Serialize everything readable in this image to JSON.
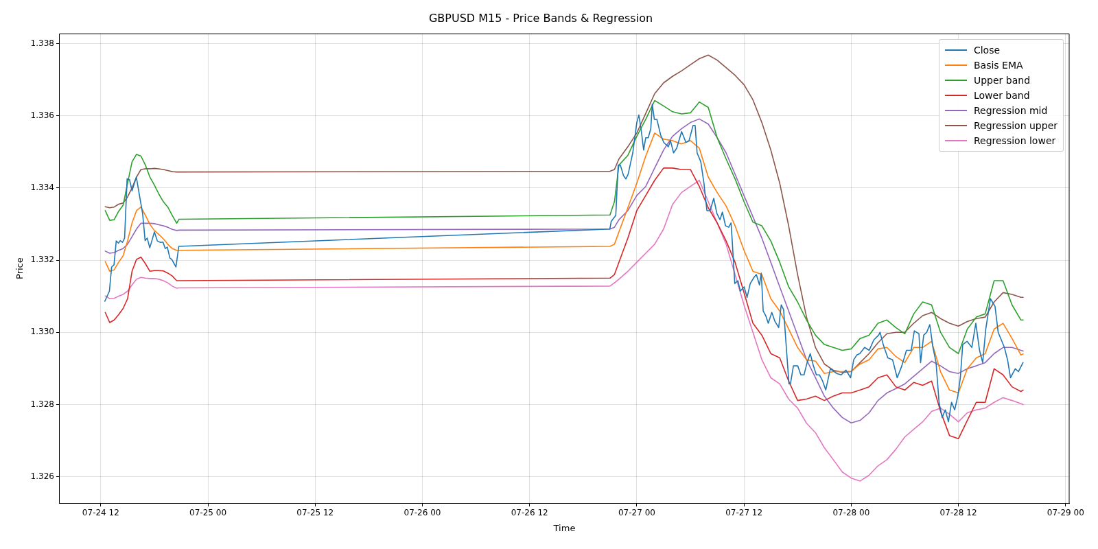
{
  "chart_data": {
    "type": "line",
    "title": "GBPUSD M15 - Price Bands & Regression",
    "xlabel": "Time",
    "ylabel": "Price",
    "x": [
      "--07-24T12:30",
      "--07-24T13:00",
      "--07-24T13:30",
      "--07-24T14:00",
      "--07-24T14:30",
      "--07-24T15:00",
      "--07-24T15:30",
      "--07-24T16:00",
      "--07-24T16:30",
      "--07-24T17:00",
      "--07-24T17:30",
      "--07-24T18:00",
      "--07-24T18:30",
      "--07-24T19:00",
      "--07-24T19:30",
      "--07-24T20:00",
      "--07-24T20:30",
      "--07-24T20:45",
      "--07-26T21:00",
      "--07-26T21:30",
      "--07-26T22:00",
      "--07-26T23:00",
      "--07-27T00:00",
      "--07-27T01:00",
      "--07-27T02:00",
      "--07-27T03:00",
      "--07-27T04:00",
      "--07-27T05:00",
      "--07-27T06:00",
      "--07-27T07:00",
      "--07-27T08:00",
      "--07-27T09:00",
      "--07-27T10:00",
      "--07-27T11:00",
      "--07-27T12:00",
      "--07-27T13:00",
      "--07-27T14:00",
      "--07-27T15:00",
      "--07-27T16:00",
      "--07-27T17:00",
      "--07-27T18:00",
      "--07-27T19:00",
      "--07-27T20:00",
      "--07-27T21:00",
      "--07-27T22:00",
      "--07-27T23:00",
      "--07-28T00:00",
      "--07-28T01:00",
      "--07-28T02:00",
      "--07-28T03:00",
      "--07-28T04:00",
      "--07-28T05:00",
      "--07-28T06:00",
      "--07-28T07:00",
      "--07-28T08:00",
      "--07-28T09:00",
      "--07-28T10:00",
      "--07-28T11:00",
      "--07-28T12:00",
      "--07-28T13:00",
      "--07-28T14:00",
      "--07-28T15:00",
      "--07-28T16:00",
      "--07-28T17:00",
      "--07-28T18:00",
      "--07-28T19:00",
      "--07-28T19:15"
    ],
    "xlim": [
      "--07-24T07:24",
      "--07-29T00:24"
    ],
    "xticks": [
      {
        "value": "--07-24T12:00",
        "label": "07-24 12"
      },
      {
        "value": "--07-25T00:00",
        "label": "07-25 00"
      },
      {
        "value": "--07-25T12:00",
        "label": "07-25 12"
      },
      {
        "value": "--07-26T00:00",
        "label": "07-26 00"
      },
      {
        "value": "--07-26T12:00",
        "label": "07-26 12"
      },
      {
        "value": "--07-27T00:00",
        "label": "07-27 00"
      },
      {
        "value": "--07-27T12:00",
        "label": "07-27 12"
      },
      {
        "value": "--07-28T00:00",
        "label": "07-28 00"
      },
      {
        "value": "--07-28T12:00",
        "label": "07-28 12"
      },
      {
        "value": "--07-29T00:00",
        "label": "07-29 00"
      }
    ],
    "ylim": [
      1.32527,
      1.33827
    ],
    "yticks": [
      1.326,
      1.328,
      {
        "value": 1.33,
        "label": "1.330"
      },
      1.332,
      1.334,
      1.336,
      1.338
    ],
    "grid": true,
    "legend": "top right",
    "series": [
      {
        "name": "Close",
        "color": "#1f77b4",
        "x": [
          "--07-24T12:27",
          "--07-24T12:58",
          "--07-24T13:13",
          "--07-24T13:29",
          "--07-24T13:44",
          "--07-24T13:59",
          "--07-24T14:11",
          "--07-24T14:26",
          "--07-24T14:40",
          "--07-24T14:57",
          "--07-24T15:13",
          "--07-24T15:30",
          "--07-24T15:59",
          "--07-24T16:20",
          "--07-24T16:41",
          "--07-24T16:58",
          "--07-24T17:12",
          "--07-24T17:29",
          "--07-24T17:43",
          "--07-24T18:00",
          "--07-24T18:20",
          "--07-24T18:41",
          "--07-24T18:58",
          "--07-24T19:13",
          "--07-24T19:27",
          "--07-24T19:44",
          "--07-24T19:58",
          "--07-24T20:25",
          "--07-24T20:44",
          "--07-26T20:59",
          "--07-26T21:08",
          "--07-26T21:39",
          "--07-26T21:55",
          "--07-26T22:10",
          "--07-26T22:31",
          "--07-26T22:47",
          "--07-26T23:02",
          "--07-26T23:33",
          "--07-27T00:00",
          "--07-27T00:14",
          "--07-27T00:31",
          "--07-27T00:46",
          "--07-27T01:00",
          "--07-27T01:17",
          "--07-27T01:34",
          "--07-27T01:44",
          "--07-27T01:58",
          "--07-27T02:15",
          "--07-27T02:40",
          "--07-27T03:01",
          "--07-27T03:32",
          "--07-27T03:46",
          "--07-27T04:07",
          "--07-27T04:28",
          "--07-27T05:01",
          "--07-27T05:30",
          "--07-27T05:51",
          "--07-27T06:18",
          "--07-27T06:32",
          "--07-27T06:45",
          "--07-27T07:10",
          "--07-27T07:31",
          "--07-27T07:51",
          "--07-27T08:12",
          "--07-27T08:37",
          "--07-27T08:58",
          "--07-27T09:19",
          "--07-27T09:35",
          "--07-27T09:56",
          "--07-27T10:17",
          "--07-27T10:33",
          "--07-27T10:41",
          "--07-27T10:58",
          "--07-27T11:19",
          "--07-27T11:35",
          "--07-27T12:01",
          "--07-27T12:21",
          "--07-27T12:42",
          "--07-27T13:07",
          "--07-27T13:23",
          "--07-27T13:44",
          "--07-27T13:56",
          "--07-27T14:09",
          "--07-27T14:26",
          "--07-27T14:43",
          "--07-27T15:07",
          "--07-27T15:28",
          "--07-27T15:53",
          "--07-27T16:10",
          "--07-27T16:26",
          "--07-27T17:02",
          "--07-27T17:12",
          "--07-27T17:32",
          "--07-27T17:40",
          "--07-27T18:01",
          "--07-27T18:22",
          "--07-27T18:43",
          "--07-27T19:04",
          "--07-27T19:25",
          "--07-27T19:46",
          "--07-27T20:06",
          "--07-27T20:27",
          "--07-27T20:48",
          "--07-27T21:09",
          "--07-27T21:40",
          "--07-27T22:22",
          "--07-27T22:53",
          "--07-27T23:25",
          "--07-27T23:56",
          "--07-28T00:17",
          "--07-28T00:38",
          "--07-28T00:58",
          "--07-28T01:30",
          "--07-28T02:01",
          "--07-28T02:32",
          "--07-28T03:04",
          "--07-28T03:14",
          "--07-28T03:35",
          "--07-28T04:06",
          "--07-28T04:38",
          "--07-28T05:09",
          "--07-28T05:40",
          "--07-28T06:11",
          "--07-28T06:43",
          "--07-28T07:04",
          "--07-28T07:35",
          "--07-28T07:46",
          "--07-28T08:07",
          "--07-28T08:27",
          "--07-28T08:48",
          "--07-28T09:09",
          "--07-28T09:30",
          "--07-28T09:50",
          "--07-28T10:11",
          "--07-28T10:32",
          "--07-28T10:53",
          "--07-28T11:14",
          "--07-28T11:35",
          "--07-28T11:56",
          "--07-28T12:13",
          "--07-28T12:29",
          "--07-28T12:58",
          "--07-28T13:30",
          "--07-28T13:57",
          "--07-28T14:22",
          "--07-28T14:43",
          "--07-28T15:04",
          "--07-28T15:35",
          "--07-28T16:06",
          "--07-28T16:27",
          "--07-28T17:09",
          "--07-28T17:30",
          "--07-28T17:50",
          "--07-28T18:22",
          "--07-28T18:43",
          "--07-28T19:14"
        ],
        "values": [
          1.33086,
          1.33114,
          1.33181,
          1.33187,
          1.33253,
          1.33247,
          1.33254,
          1.33249,
          1.33261,
          1.33425,
          1.33423,
          1.33392,
          1.3343,
          1.33379,
          1.33329,
          1.33254,
          1.33261,
          1.33234,
          1.33253,
          1.33278,
          1.33253,
          1.33249,
          1.3325,
          1.33232,
          1.33236,
          1.33206,
          1.33201,
          1.33181,
          1.33238,
          1.33286,
          1.33307,
          1.33324,
          1.33463,
          1.33463,
          1.33434,
          1.33425,
          1.33438,
          1.33497,
          1.33581,
          1.33602,
          1.33556,
          1.33505,
          1.33539,
          1.33539,
          1.33564,
          1.33632,
          1.3359,
          1.3359,
          1.33547,
          1.33526,
          1.33514,
          1.33531,
          1.33497,
          1.3351,
          1.33556,
          1.33526,
          1.33531,
          1.33573,
          1.33573,
          1.33497,
          1.33472,
          1.33413,
          1.33337,
          1.33337,
          1.33371,
          1.33329,
          1.33312,
          1.33333,
          1.33295,
          1.33291,
          1.33303,
          1.33253,
          1.33135,
          1.33143,
          1.33114,
          1.33126,
          1.33097,
          1.33135,
          1.33152,
          1.3316,
          1.33131,
          1.33164,
          1.33059,
          1.33046,
          1.33025,
          1.33055,
          1.3303,
          1.33013,
          1.33076,
          1.33063,
          1.32857,
          1.32857,
          1.32907,
          1.32907,
          1.32907,
          1.32882,
          1.32882,
          1.32916,
          1.32941,
          1.32907,
          1.32882,
          1.32882,
          1.32865,
          1.3284,
          1.32899,
          1.32886,
          1.32882,
          1.32895,
          1.32874,
          1.32924,
          1.32937,
          1.32941,
          1.32958,
          1.3295,
          1.32979,
          1.32992,
          1.33,
          1.32966,
          1.32929,
          1.32924,
          1.32874,
          1.32907,
          1.3295,
          1.3295,
          1.33004,
          1.32996,
          1.32916,
          1.32992,
          1.33,
          1.33021,
          1.32958,
          1.32916,
          1.32806,
          1.32764,
          1.32785,
          1.32752,
          1.32806,
          1.32785,
          1.32823,
          1.32874,
          1.32966,
          1.32975,
          1.32958,
          1.33025,
          1.3295,
          1.32916,
          1.33009,
          1.33093,
          1.33072,
          1.33,
          1.32958,
          1.32924,
          1.32874,
          1.32899,
          1.32891,
          1.32916
        ]
      },
      {
        "name": "Basis EMA",
        "color": "#ff7f0e",
        "values": [
          1.33196,
          1.33169,
          1.33173,
          1.33194,
          1.33212,
          1.33253,
          1.33303,
          1.33337,
          1.33347,
          1.33324,
          1.33299,
          1.33282,
          1.33271,
          1.33259,
          1.33244,
          1.33232,
          1.33227,
          1.33227,
          1.33238,
          1.33244,
          1.33278,
          1.33345,
          1.33413,
          1.33488,
          1.33552,
          1.33535,
          1.33531,
          1.33522,
          1.33531,
          1.3351,
          1.3343,
          1.33387,
          1.3335,
          1.33295,
          1.33227,
          1.33169,
          1.3316,
          1.33093,
          1.33059,
          1.33009,
          1.32958,
          1.32924,
          1.3292,
          1.32886,
          1.32891,
          1.32891,
          1.32892,
          1.32912,
          1.32924,
          1.32954,
          1.32958,
          1.32933,
          1.32916,
          1.32958,
          1.32958,
          1.32975,
          1.32891,
          1.3284,
          1.32832,
          1.32899,
          1.32929,
          1.32941,
          1.33009,
          1.33025,
          1.32983,
          1.32937,
          1.3294
        ]
      },
      {
        "name": "Upper band",
        "color": "#2ca02c",
        "values": [
          1.33337,
          1.3331,
          1.33312,
          1.33335,
          1.33352,
          1.33413,
          1.33472,
          1.33493,
          1.33488,
          1.33463,
          1.3343,
          1.33408,
          1.33383,
          1.33362,
          1.33347,
          1.33324,
          1.33302,
          1.33313,
          1.33325,
          1.33362,
          1.33463,
          1.3349,
          1.33543,
          1.3359,
          1.33642,
          1.33627,
          1.33611,
          1.33605,
          1.33608,
          1.33638,
          1.33623,
          1.33539,
          1.3348,
          1.33425,
          1.33362,
          1.33305,
          1.33295,
          1.33253,
          1.33194,
          1.33126,
          1.33084,
          1.33034,
          1.32992,
          1.32966,
          1.32958,
          1.3295,
          1.32954,
          1.32983,
          1.32992,
          1.33025,
          1.33034,
          1.33013,
          1.32996,
          1.33051,
          1.33084,
          1.33076,
          1.33,
          1.32958,
          1.32941,
          1.33009,
          1.33042,
          1.33051,
          1.33143,
          1.33143,
          1.33076,
          1.33034,
          1.33034
        ]
      },
      {
        "name": "Lower band",
        "color": "#d62728",
        "values": [
          1.33055,
          1.33027,
          1.33034,
          1.33049,
          1.33066,
          1.33093,
          1.33169,
          1.33202,
          1.33208,
          1.3319,
          1.33169,
          1.33171,
          1.33171,
          1.3317,
          1.33164,
          1.33156,
          1.33143,
          1.33143,
          1.3315,
          1.3316,
          1.33194,
          1.33261,
          1.33337,
          1.33379,
          1.33421,
          1.33455,
          1.33455,
          1.33451,
          1.33451,
          1.33404,
          1.33345,
          1.33303,
          1.33253,
          1.33194,
          1.3311,
          1.33025,
          1.32992,
          1.32941,
          1.32929,
          1.32865,
          1.32811,
          1.32815,
          1.32823,
          1.32811,
          1.32823,
          1.32832,
          1.32832,
          1.3284,
          1.32849,
          1.32874,
          1.32882,
          1.32849,
          1.3284,
          1.32861,
          1.32853,
          1.32865,
          1.32781,
          1.32714,
          1.32705,
          1.32756,
          1.32806,
          1.32806,
          1.32899,
          1.32882,
          1.32849,
          1.32836,
          1.3284
        ]
      },
      {
        "name": "Regression mid",
        "color": "#9467bd",
        "values": [
          1.33225,
          1.33219,
          1.33221,
          1.33227,
          1.33232,
          1.33244,
          1.33265,
          1.33286,
          1.33302,
          1.33302,
          1.33302,
          1.33301,
          1.33298,
          1.33295,
          1.33291,
          1.33285,
          1.33282,
          1.33283,
          1.33286,
          1.33291,
          1.33312,
          1.33337,
          1.33379,
          1.33404,
          1.33455,
          1.33505,
          1.33543,
          1.33564,
          1.33581,
          1.33591,
          1.33577,
          1.33539,
          1.33497,
          1.33438,
          1.33379,
          1.3332,
          1.33261,
          1.33194,
          1.33126,
          1.33059,
          1.32992,
          1.32924,
          1.32874,
          1.32823,
          1.3279,
          1.32764,
          1.32749,
          1.32756,
          1.32777,
          1.32811,
          1.32832,
          1.32844,
          1.32857,
          1.32878,
          1.32899,
          1.3292,
          1.32907,
          1.32891,
          1.32886,
          1.32899,
          1.32907,
          1.32916,
          1.32941,
          1.32958,
          1.32958,
          1.3295,
          1.32948
        ]
      },
      {
        "name": "Regression upper",
        "color": "#8c564b",
        "values": [
          1.33348,
          1.33345,
          1.33347,
          1.33355,
          1.33358,
          1.33375,
          1.334,
          1.3343,
          1.33451,
          1.33453,
          1.33453,
          1.33454,
          1.33453,
          1.33451,
          1.33448,
          1.33445,
          1.33444,
          1.33444,
          1.33446,
          1.33451,
          1.3348,
          1.33514,
          1.33552,
          1.33606,
          1.33661,
          1.33691,
          1.33709,
          1.33724,
          1.33741,
          1.33758,
          1.33768,
          1.33754,
          1.33733,
          1.33712,
          1.33686,
          1.33644,
          1.33581,
          1.33505,
          1.33413,
          1.33295,
          1.3316,
          1.33042,
          1.32958,
          1.32912,
          1.32895,
          1.32889,
          1.32891,
          1.32916,
          1.32941,
          1.32971,
          1.32996,
          1.33,
          1.33,
          1.33025,
          1.33046,
          1.33055,
          1.33038,
          1.33025,
          1.33017,
          1.3303,
          1.33038,
          1.33042,
          1.33084,
          1.3311,
          1.33105,
          1.33097,
          1.33097
        ]
      },
      {
        "name": "Regression lower",
        "color": "#e377c2",
        "values": [
          1.33101,
          1.33093,
          1.33094,
          1.331,
          1.33105,
          1.33114,
          1.33131,
          1.33147,
          1.33152,
          1.3315,
          1.33149,
          1.33149,
          1.33147,
          1.33143,
          1.33137,
          1.33128,
          1.33122,
          1.33123,
          1.33128,
          1.33137,
          1.33147,
          1.33169,
          1.33194,
          1.33219,
          1.33244,
          1.33286,
          1.33354,
          1.33387,
          1.33404,
          1.33421,
          1.33362,
          1.33303,
          1.33244,
          1.3316,
          1.33076,
          1.33,
          1.32924,
          1.32874,
          1.32857,
          1.32815,
          1.3279,
          1.32748,
          1.32722,
          1.3268,
          1.32647,
          1.32613,
          1.32596,
          1.32588,
          1.32604,
          1.3263,
          1.32647,
          1.32676,
          1.3271,
          1.32731,
          1.32752,
          1.32781,
          1.3279,
          1.32773,
          1.32752,
          1.32777,
          1.32785,
          1.3279,
          1.32806,
          1.32819,
          1.32811,
          1.32802,
          1.328
        ]
      }
    ]
  }
}
